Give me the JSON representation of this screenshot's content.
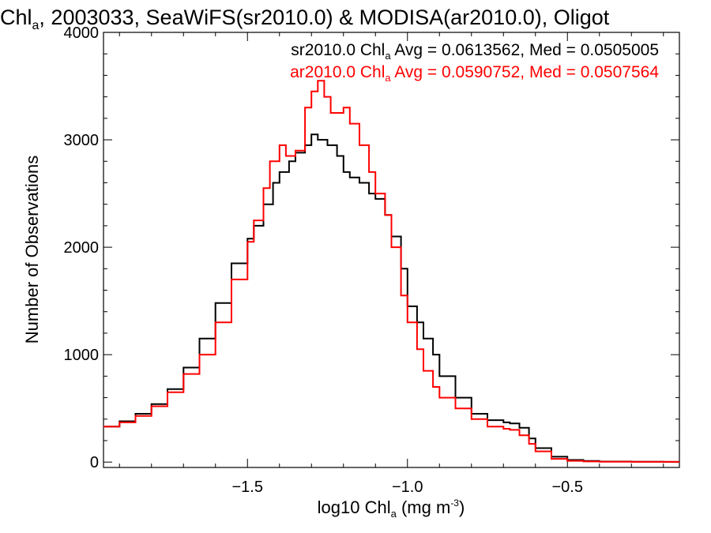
{
  "chart_data": {
    "type": "line",
    "title_main": "Chl",
    "title_sub": "a",
    "title_rest": ", 2003033, SeaWiFS(sr2010.0) & MODISA(ar2010.0), Oligot",
    "xlabel_main": "log10 Chl",
    "xlabel_sub": "a",
    "xlabel_units": " (mg m",
    "xlabel_exp": "-3",
    "xlabel_close": ")",
    "ylabel": "Number of Observations",
    "xlim": [
      -1.95,
      -0.15
    ],
    "ylim": [
      -50,
      4000
    ],
    "xticks": [
      -1.5,
      -1.0,
      -0.5
    ],
    "xtick_labels": [
      "−1.5",
      "−1.0",
      "−0.5"
    ],
    "yticks": [
      0,
      1000,
      2000,
      3000,
      4000
    ],
    "ytick_labels": [
      "0",
      "1000",
      "2000",
      "3000",
      "4000"
    ],
    "grid": false,
    "legend_position": "top-right",
    "series": [
      {
        "name": "sr2010.0",
        "color": "#000000",
        "legend_prefix": "sr2010.0 Chl",
        "legend_sub": "a",
        "legend_suffix": " Avg = 0.0613562, Med = 0.0505005",
        "x": [
          -1.95,
          -1.9,
          -1.85,
          -1.8,
          -1.75,
          -1.7,
          -1.65,
          -1.6,
          -1.55,
          -1.5,
          -1.48,
          -1.45,
          -1.42,
          -1.4,
          -1.37,
          -1.35,
          -1.32,
          -1.3,
          -1.28,
          -1.25,
          -1.22,
          -1.2,
          -1.18,
          -1.15,
          -1.12,
          -1.1,
          -1.07,
          -1.05,
          -1.02,
          -1.0,
          -0.97,
          -0.95,
          -0.92,
          -0.9,
          -0.85,
          -0.8,
          -0.75,
          -0.7,
          -0.68,
          -0.65,
          -0.62,
          -0.6,
          -0.55,
          -0.5,
          -0.45,
          -0.4,
          -0.3,
          -0.2,
          -0.15
        ],
        "y": [
          330,
          380,
          450,
          540,
          680,
          880,
          1150,
          1480,
          1850,
          2080,
          2200,
          2400,
          2600,
          2700,
          2800,
          2880,
          2950,
          3050,
          3000,
          2950,
          2850,
          2700,
          2650,
          2600,
          2500,
          2450,
          2300,
          2100,
          1800,
          1450,
          1300,
          1150,
          1000,
          800,
          600,
          450,
          390,
          370,
          360,
          320,
          220,
          130,
          50,
          20,
          10,
          5,
          3,
          2,
          2
        ]
      },
      {
        "name": "ar2010.0",
        "color": "#ff0000",
        "legend_prefix": "ar2010.0 Chl",
        "legend_sub": "a",
        "legend_suffix": " Avg = 0.0590752, Med = 0.0507564",
        "x": [
          -1.95,
          -1.9,
          -1.85,
          -1.8,
          -1.75,
          -1.7,
          -1.65,
          -1.6,
          -1.55,
          -1.5,
          -1.48,
          -1.45,
          -1.43,
          -1.4,
          -1.38,
          -1.35,
          -1.32,
          -1.3,
          -1.28,
          -1.26,
          -1.24,
          -1.22,
          -1.2,
          -1.18,
          -1.15,
          -1.12,
          -1.1,
          -1.07,
          -1.05,
          -1.02,
          -1.0,
          -0.97,
          -0.95,
          -0.92,
          -0.9,
          -0.85,
          -0.8,
          -0.75,
          -0.7,
          -0.68,
          -0.65,
          -0.62,
          -0.6,
          -0.55,
          -0.5,
          -0.45,
          -0.4,
          -0.3,
          -0.2,
          -0.15
        ],
        "y": [
          330,
          370,
          430,
          520,
          650,
          820,
          1000,
          1300,
          1700,
          2050,
          2250,
          2550,
          2800,
          2950,
          2850,
          2900,
          3300,
          3450,
          3550,
          3400,
          3250,
          3250,
          3300,
          3150,
          2950,
          2700,
          2500,
          2300,
          2000,
          1550,
          1300,
          1050,
          850,
          700,
          600,
          500,
          400,
          330,
          310,
          300,
          250,
          170,
          100,
          30,
          12,
          6,
          3,
          2,
          2,
          2
        ]
      }
    ]
  }
}
